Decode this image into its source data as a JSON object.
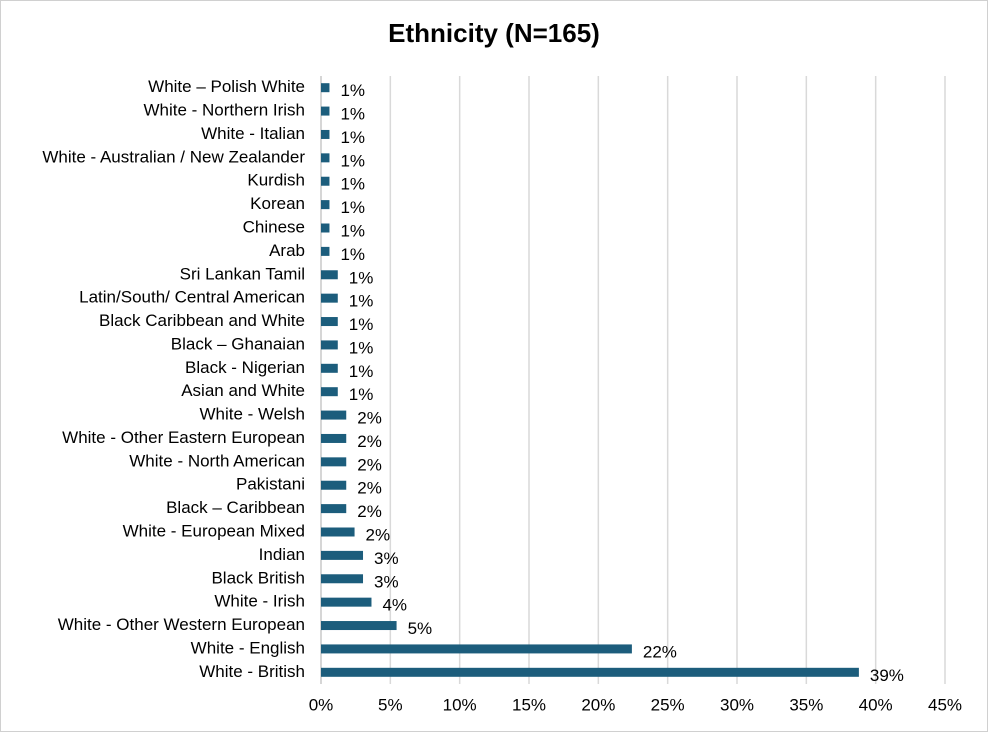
{
  "chart_data": {
    "type": "hbar",
    "title": "Ethnicity (N=165)",
    "categories": [
      "White – Polish White",
      "White - Northern Irish",
      "White - Italian",
      "White - Australian / New Zealander",
      "Kurdish",
      "Korean",
      "Chinese",
      "Arab",
      "Sri Lankan Tamil",
      "Latin/South/ Central American",
      "Black Caribbean and White",
      "Black – Ghanaian",
      "Black - Nigerian",
      "Asian and White",
      "White - Welsh",
      "White - Other Eastern European",
      "White - North American",
      "Pakistani",
      "Black – Caribbean",
      "White - European Mixed",
      "Indian",
      "Black British",
      "White - Irish",
      "White - Other Western European",
      "White - English",
      "White - British"
    ],
    "values": [
      0.61,
      0.61,
      0.61,
      0.61,
      0.61,
      0.61,
      0.61,
      0.61,
      1.21,
      1.21,
      1.21,
      1.21,
      1.21,
      1.21,
      1.82,
      1.82,
      1.82,
      1.82,
      1.82,
      2.42,
      3.03,
      3.03,
      3.64,
      5.45,
      22.42,
      38.79
    ],
    "value_labels": [
      "1%",
      "1%",
      "1%",
      "1%",
      "1%",
      "1%",
      "1%",
      "1%",
      "1%",
      "1%",
      "1%",
      "1%",
      "1%",
      "1%",
      "2%",
      "2%",
      "2%",
      "2%",
      "2%",
      "2%",
      "3%",
      "3%",
      "4%",
      "5%",
      "22%",
      "39%"
    ],
    "color": "#1c5d7c",
    "xlim": [
      0,
      45
    ],
    "xticks": [
      {
        "value": 0,
        "label": "0%"
      },
      {
        "value": 5,
        "label": "5%"
      },
      {
        "value": 10,
        "label": "10%"
      },
      {
        "value": 15,
        "label": "15%"
      },
      {
        "value": 20,
        "label": "20%"
      },
      {
        "value": 25,
        "label": "25%"
      },
      {
        "value": 30,
        "label": "30%"
      },
      {
        "value": 35,
        "label": "35%"
      },
      {
        "value": 40,
        "label": "40%"
      },
      {
        "value": 45,
        "label": "45%"
      }
    ],
    "grid": true
  }
}
